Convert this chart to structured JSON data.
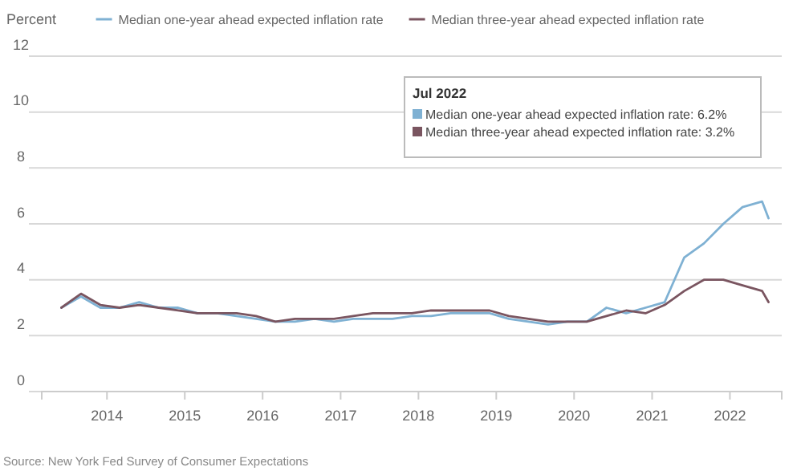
{
  "chart_data": {
    "type": "line",
    "ylabel": "Percent",
    "x": [
      "2013-06",
      "2013-09",
      "2013-12",
      "2014-03",
      "2014-06",
      "2014-09",
      "2014-12",
      "2015-03",
      "2015-06",
      "2015-09",
      "2015-12",
      "2016-03",
      "2016-06",
      "2016-09",
      "2016-12",
      "2017-03",
      "2017-06",
      "2017-09",
      "2017-12",
      "2018-03",
      "2018-06",
      "2018-09",
      "2018-12",
      "2019-03",
      "2019-06",
      "2019-09",
      "2019-12",
      "2020-03",
      "2020-06",
      "2020-09",
      "2020-12",
      "2021-03",
      "2021-06",
      "2021-09",
      "2021-12",
      "2022-03",
      "2022-06",
      "2022-07"
    ],
    "series": [
      {
        "name": "Median one-year ahead expected inflation rate",
        "color": "#7fb1d3",
        "values": [
          3.0,
          3.4,
          3.0,
          3.0,
          3.2,
          3.0,
          3.0,
          2.8,
          2.8,
          2.7,
          2.6,
          2.5,
          2.5,
          2.6,
          2.5,
          2.6,
          2.6,
          2.6,
          2.7,
          2.7,
          2.8,
          2.8,
          2.8,
          2.6,
          2.5,
          2.4,
          2.5,
          2.5,
          3.0,
          2.8,
          3.0,
          3.2,
          4.8,
          5.3,
          6.0,
          6.6,
          6.8,
          6.2
        ]
      },
      {
        "name": "Median three-year ahead expected inflation rate",
        "color": "#7a5560",
        "values": [
          3.0,
          3.5,
          3.1,
          3.0,
          3.1,
          3.0,
          2.9,
          2.8,
          2.8,
          2.8,
          2.7,
          2.5,
          2.6,
          2.6,
          2.6,
          2.7,
          2.8,
          2.8,
          2.8,
          2.9,
          2.9,
          2.9,
          2.9,
          2.7,
          2.6,
          2.5,
          2.5,
          2.5,
          2.7,
          2.9,
          2.8,
          3.1,
          3.6,
          4.0,
          4.0,
          3.8,
          3.6,
          3.2
        ]
      }
    ],
    "xlim": [
      "2013-03",
      "2022-09"
    ],
    "xticks": [
      {
        "value": "2014-01",
        "label": "2014"
      },
      {
        "value": "2015-01",
        "label": "2015"
      },
      {
        "value": "2016-01",
        "label": "2016"
      },
      {
        "value": "2017-01",
        "label": "2017"
      },
      {
        "value": "2018-01",
        "label": "2018"
      },
      {
        "value": "2019-01",
        "label": "2019"
      },
      {
        "value": "2020-01",
        "label": "2020"
      },
      {
        "value": "2021-01",
        "label": "2021"
      },
      {
        "value": "2022-01",
        "label": "2022"
      }
    ],
    "ylim": [
      0,
      12
    ],
    "yticks": [
      0,
      2,
      4,
      6,
      8,
      10,
      12
    ],
    "grid": "y",
    "legend": "top",
    "annotations": [
      "Jul 2022",
      "Median one-year ahead expected inflation rate: 6.2%",
      "Median three-year ahead expected inflation rate: 3.2%",
      "Source: New York Fed Survey of Consumer Expectations"
    ]
  }
}
